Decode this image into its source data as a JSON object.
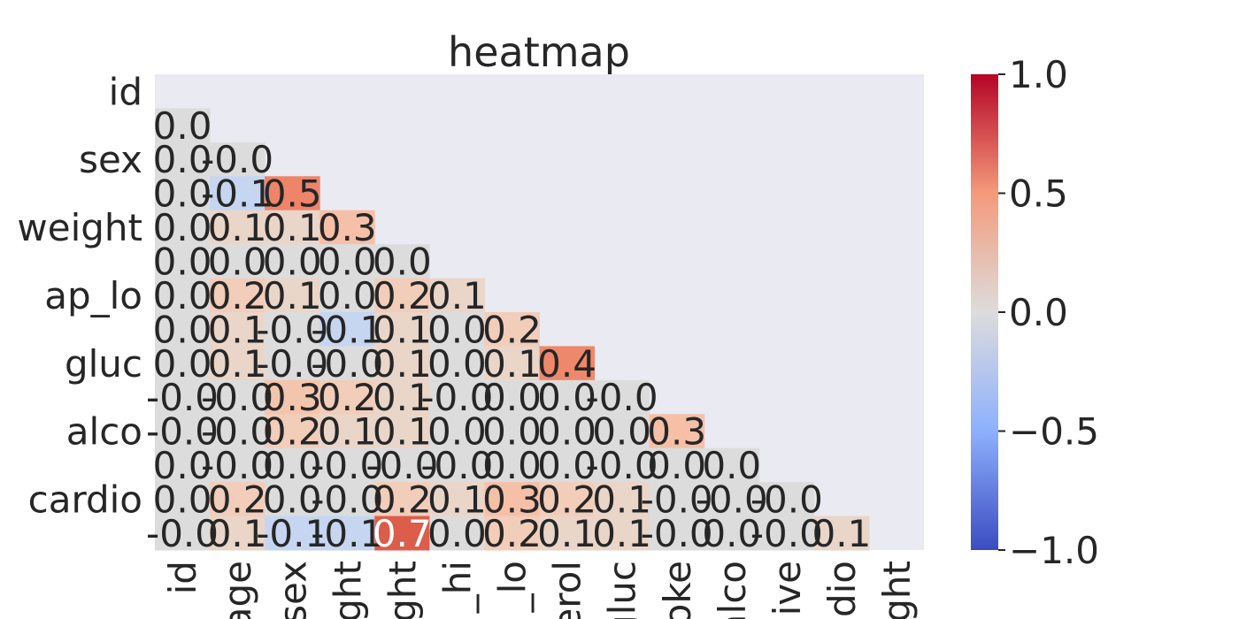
{
  "chart_data": {
    "type": "heatmap",
    "title": "heatmap",
    "xlabel": "",
    "ylabel": "",
    "colormap": "coolwarm",
    "mask": "upper-triangle-including-diagonal",
    "vmin": -1.0,
    "vmax": 1.0,
    "x_labels": [
      "id",
      "age",
      "sex",
      "height",
      "weight",
      "ap_hi",
      "ap_lo",
      "cholesterol",
      "gluc",
      "smoke",
      "alco",
      "active",
      "cardio",
      "overweight"
    ],
    "x_labels_visible": [
      "id",
      "age",
      "sex",
      "ght",
      "ght",
      "_hi",
      "_lo",
      "erol",
      "gluc",
      "oke",
      "alco",
      "ive",
      "dio",
      "ght"
    ],
    "y_labels": [
      "id",
      "age",
      "sex",
      "height",
      "weight",
      "ap_hi",
      "ap_lo",
      "cholesterol",
      "gluc",
      "smoke",
      "alco",
      "active",
      "cardio",
      "overweight"
    ],
    "y_tick_labels": [
      "id",
      "",
      "sex",
      "",
      "weight",
      "",
      "ap_lo",
      "",
      "gluc",
      "",
      "alco",
      "",
      "cardio",
      ""
    ],
    "colorbar_ticks": [
      1.0,
      0.5,
      0.0,
      -0.5,
      -1.0
    ],
    "colorbar_tick_labels": [
      "1.0",
      "0.5",
      "0.0",
      "−0.5",
      "−1.0"
    ],
    "values": [
      [],
      [
        0.0
      ],
      [
        0.0,
        -0.0
      ],
      [
        0.0,
        -0.1,
        0.5
      ],
      [
        0.0,
        0.1,
        0.1,
        0.3
      ],
      [
        0.0,
        0.0,
        0.0,
        0.0,
        0.0
      ],
      [
        0.0,
        0.2,
        0.1,
        0.0,
        0.2,
        0.1
      ],
      [
        0.0,
        0.1,
        -0.0,
        -0.1,
        0.1,
        0.0,
        0.2
      ],
      [
        0.0,
        0.1,
        -0.0,
        -0.0,
        0.1,
        0.0,
        0.1,
        0.4
      ],
      [
        -0.0,
        -0.0,
        0.3,
        0.2,
        0.1,
        -0.0,
        0.0,
        0.0,
        -0.0
      ],
      [
        -0.0,
        -0.0,
        0.2,
        0.1,
        0.1,
        0.0,
        0.0,
        0.0,
        0.0,
        0.3
      ],
      [
        0.0,
        -0.0,
        0.0,
        -0.0,
        -0.0,
        -0.0,
        0.0,
        0.0,
        -0.0,
        0.0,
        0.0
      ],
      [
        0.0,
        0.2,
        0.0,
        -0.0,
        0.2,
        0.1,
        0.3,
        0.2,
        0.1,
        -0.0,
        -0.0,
        -0.0
      ],
      [
        -0.0,
        0.1,
        -0.1,
        -0.1,
        0.7,
        0.0,
        0.2,
        0.1,
        0.1,
        -0.0,
        0.0,
        -0.0,
        0.1
      ]
    ],
    "cell_colors": [
      [],
      [
        "#dddcdc"
      ],
      [
        "#dddcdc",
        "#dddcdc"
      ],
      [
        "#dddcdc",
        "#c6d6f1",
        "#ee8468"
      ],
      [
        "#dddcdc",
        "#ead5c9",
        "#ead5c9",
        "#f5c0a7"
      ],
      [
        "#dddcdc",
        "#dddcdc",
        "#dddcdc",
        "#dddcdc",
        "#dddcdc"
      ],
      [
        "#dddcdc",
        "#f1cdba",
        "#ead5c9",
        "#dddcdc",
        "#f1cdba",
        "#ead5c9"
      ],
      [
        "#dddcdc",
        "#ead5c9",
        "#dddcdc",
        "#c6d6f1",
        "#ead5c9",
        "#dddcdc",
        "#f1cdba"
      ],
      [
        "#dddcdc",
        "#ead5c9",
        "#dddcdc",
        "#dddcdc",
        "#ead5c9",
        "#dddcdc",
        "#ead5c9",
        "#ef886b"
      ],
      [
        "#dddcdc",
        "#dddcdc",
        "#f4c5ad",
        "#f1cdba",
        "#ead5c9",
        "#dddcdc",
        "#dddcdc",
        "#dddcdc",
        "#dddcdc"
      ],
      [
        "#dddcdc",
        "#dddcdc",
        "#f1cdba",
        "#ead5c9",
        "#ead5c9",
        "#dddcdc",
        "#dddcdc",
        "#dddcdc",
        "#dddcdc",
        "#f5c0a7"
      ],
      [
        "#dddcdc",
        "#dddcdc",
        "#dddcdc",
        "#dddcdc",
        "#dddcdc",
        "#dddcdc",
        "#dddcdc",
        "#dddcdc",
        "#dddcdc",
        "#dddcdc",
        "#dddcdc"
      ],
      [
        "#dddcdc",
        "#f1cdba",
        "#dddcdc",
        "#dddcdc",
        "#f1cdba",
        "#ead5c9",
        "#f5c0a7",
        "#f1cdba",
        "#ead5c9",
        "#dddcdc",
        "#dddcdc",
        "#dddcdc"
      ],
      [
        "#dddcdc",
        "#ead5c9",
        "#c6d6f1",
        "#c6d6f1",
        "#dc5d4a",
        "#dddcdc",
        "#f1cdba",
        "#ead5c9",
        "#ead5c9",
        "#dddcdc",
        "#dddcdc",
        "#dddcdc",
        "#ead5c9"
      ]
    ],
    "background_color": "#eaeaf2",
    "text_color": "#262626",
    "highlight_text_color": "#ffffff"
  }
}
